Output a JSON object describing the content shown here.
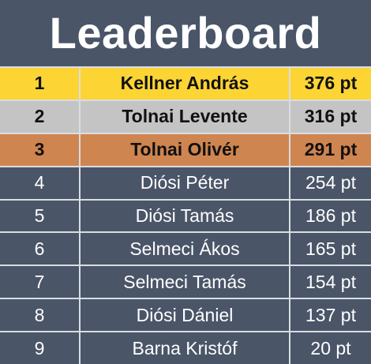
{
  "header": {
    "title": "Leaderboard"
  },
  "table": {
    "rows": [
      [
        "1",
        "Kellner András",
        "376 pt"
      ],
      [
        "2",
        "Tolnai Levente",
        "316 pt"
      ],
      [
        "3",
        "Tolnai Olivér",
        "291 pt"
      ],
      [
        "4",
        "Diósi Péter",
        "254 pt"
      ],
      [
        "5",
        "Diósi Tamás",
        "186 pt"
      ],
      [
        "6",
        "Selmeci Ákos",
        "165 pt"
      ],
      [
        "7",
        "Selmeci Tamás",
        "154 pt"
      ],
      [
        "8",
        "Diósi Dániel",
        "137 pt"
      ],
      [
        "9",
        "Barna Kristóf",
        "20 pt"
      ]
    ]
  }
}
